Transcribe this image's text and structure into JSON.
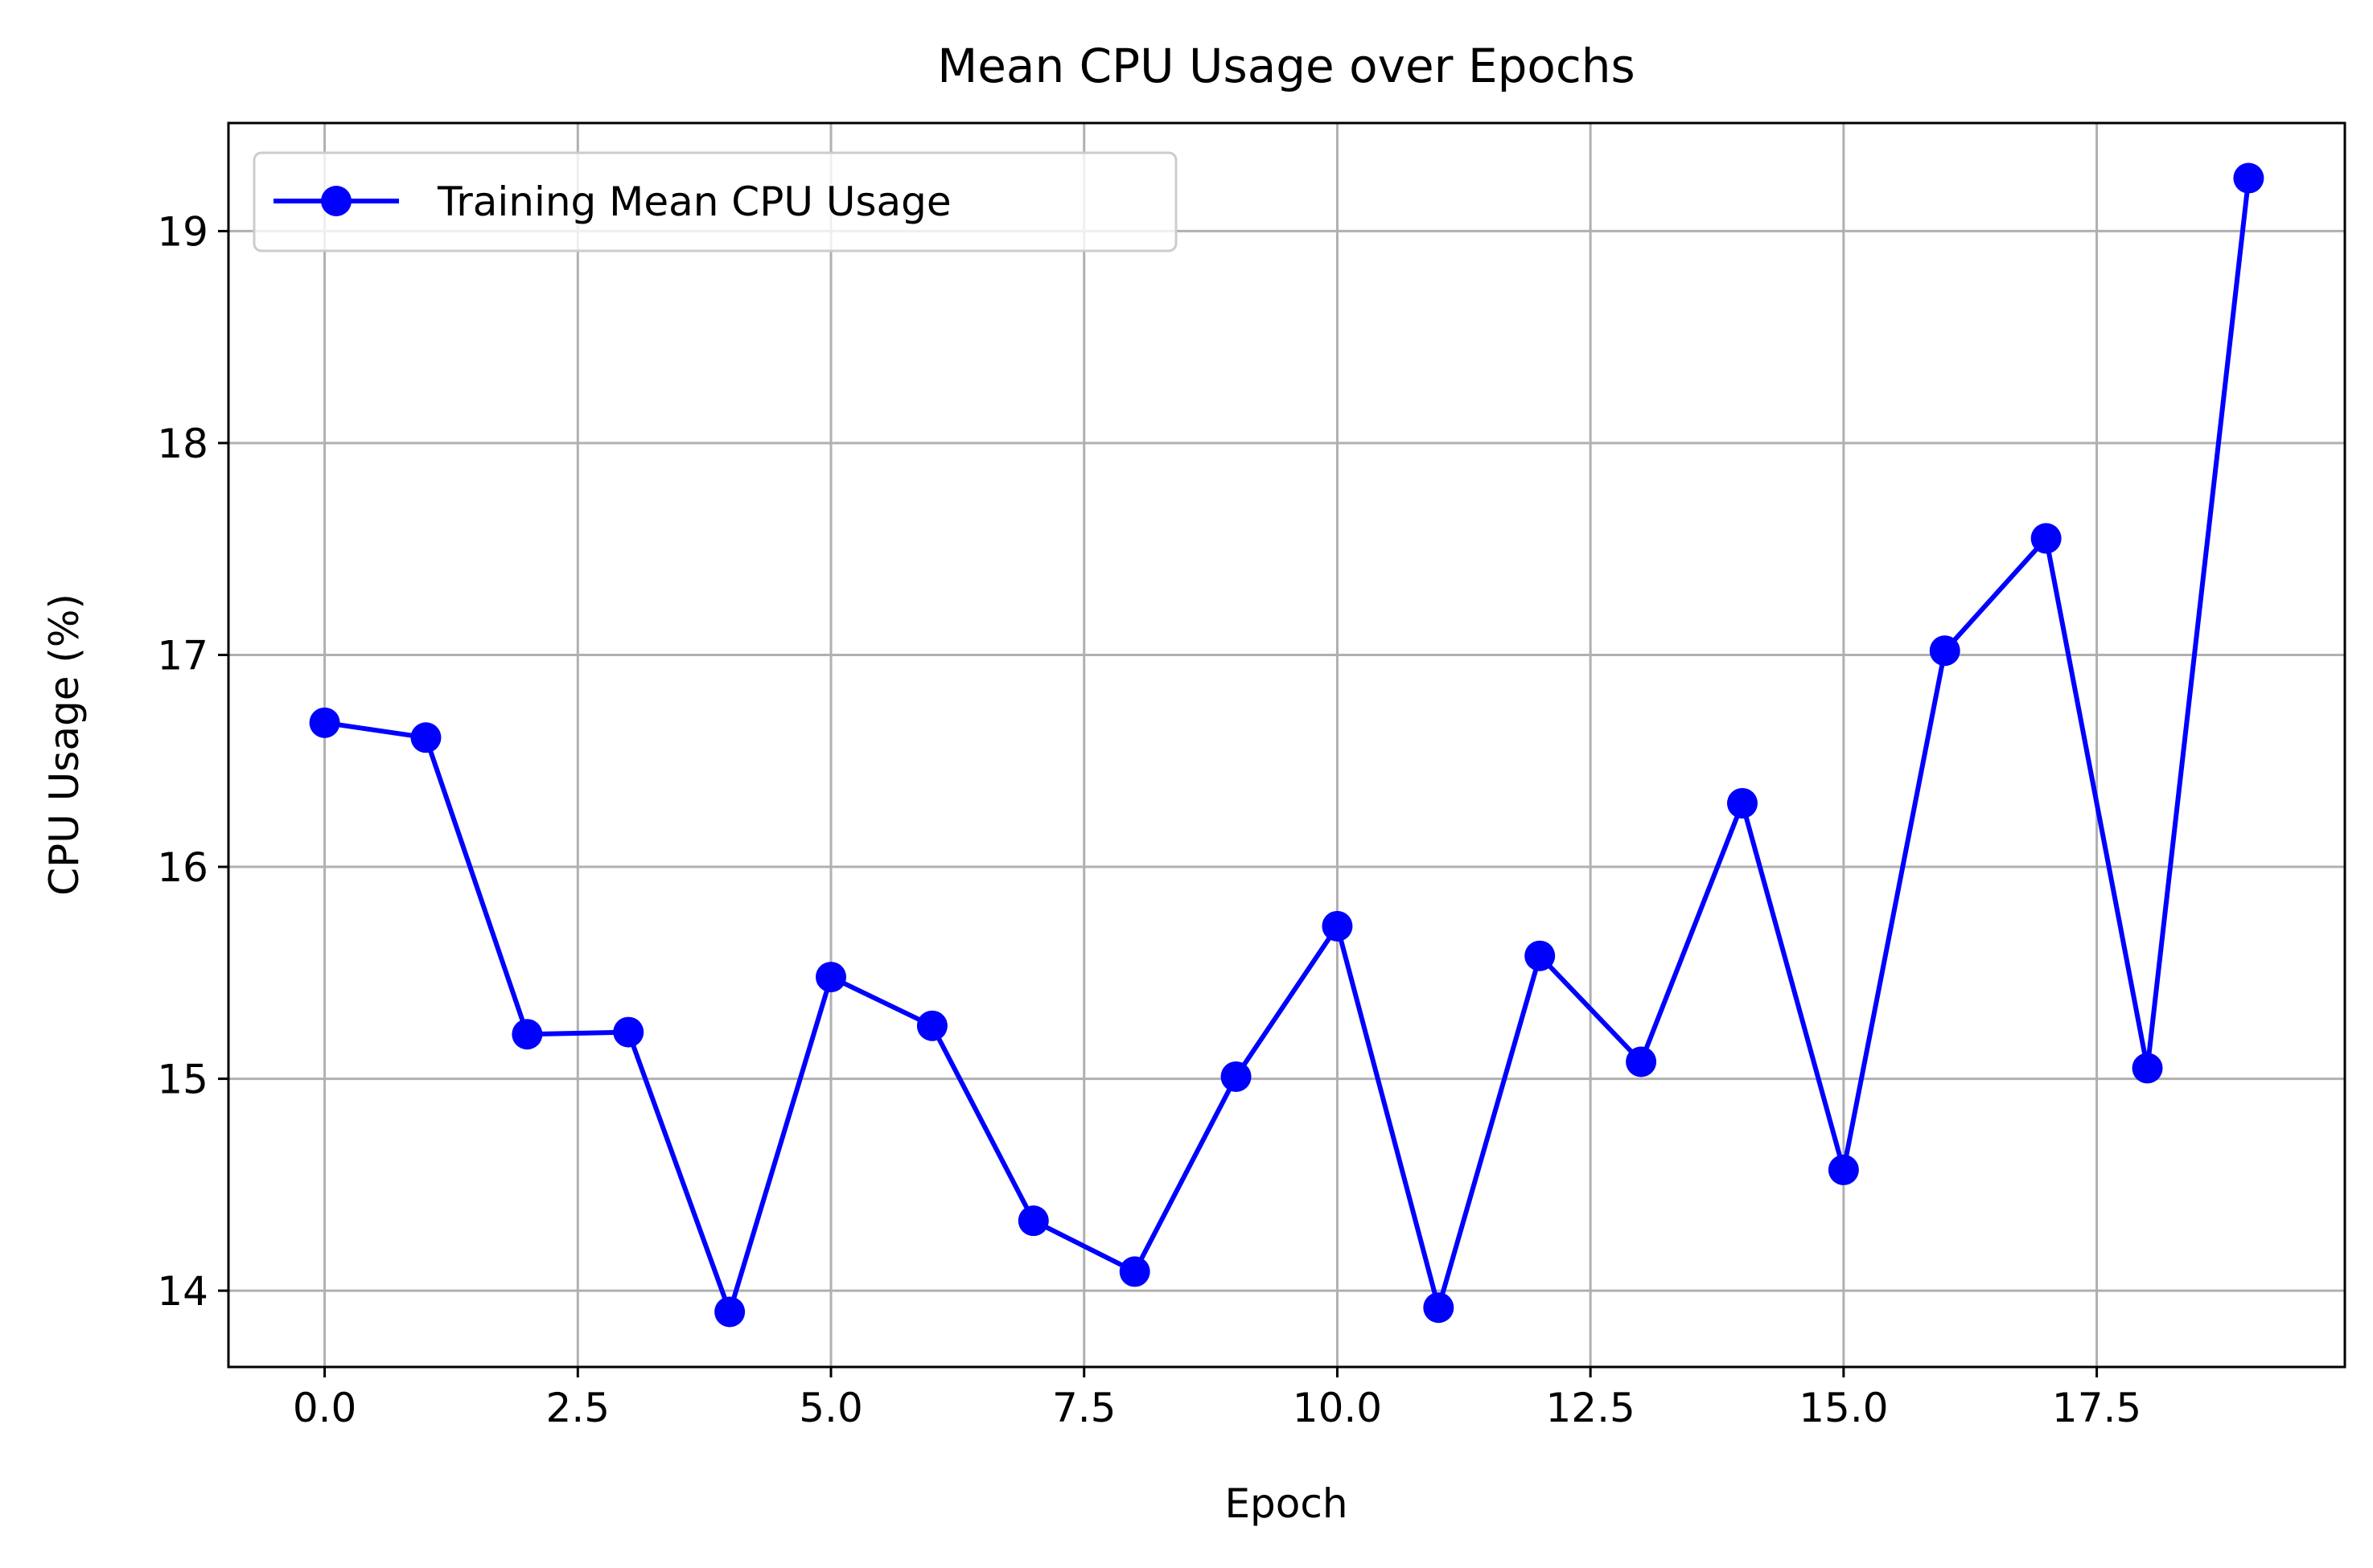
{
  "chart_data": {
    "type": "line",
    "title": "Mean CPU Usage over Epochs",
    "xlabel": "Epoch",
    "ylabel": "CPU Usage (%)",
    "xlim": [
      -0.95,
      19.95
    ],
    "ylim": [
      13.64,
      19.51
    ],
    "x_ticks": [
      0.0,
      2.5,
      5.0,
      7.5,
      10.0,
      12.5,
      15.0,
      17.5
    ],
    "x_tick_labels": [
      "0.0",
      "2.5",
      "5.0",
      "7.5",
      "10.0",
      "12.5",
      "15.0",
      "17.5"
    ],
    "y_ticks": [
      14,
      15,
      16,
      17,
      18,
      19
    ],
    "y_tick_labels": [
      "14",
      "15",
      "16",
      "17",
      "18",
      "19"
    ],
    "grid": true,
    "legend_position": "upper-left",
    "series": [
      {
        "name": "Training Mean CPU Usage",
        "color": "#0000ff",
        "marker": "circle",
        "x": [
          0,
          1,
          2,
          3,
          4,
          5,
          6,
          7,
          8,
          9,
          10,
          11,
          12,
          13,
          14,
          15,
          16,
          17,
          18,
          19
        ],
        "y": [
          16.68,
          16.61,
          15.21,
          15.22,
          13.9,
          15.48,
          15.25,
          14.33,
          14.09,
          15.01,
          15.72,
          13.92,
          15.58,
          15.08,
          16.3,
          14.57,
          17.02,
          17.55,
          15.05,
          19.25
        ]
      }
    ]
  }
}
